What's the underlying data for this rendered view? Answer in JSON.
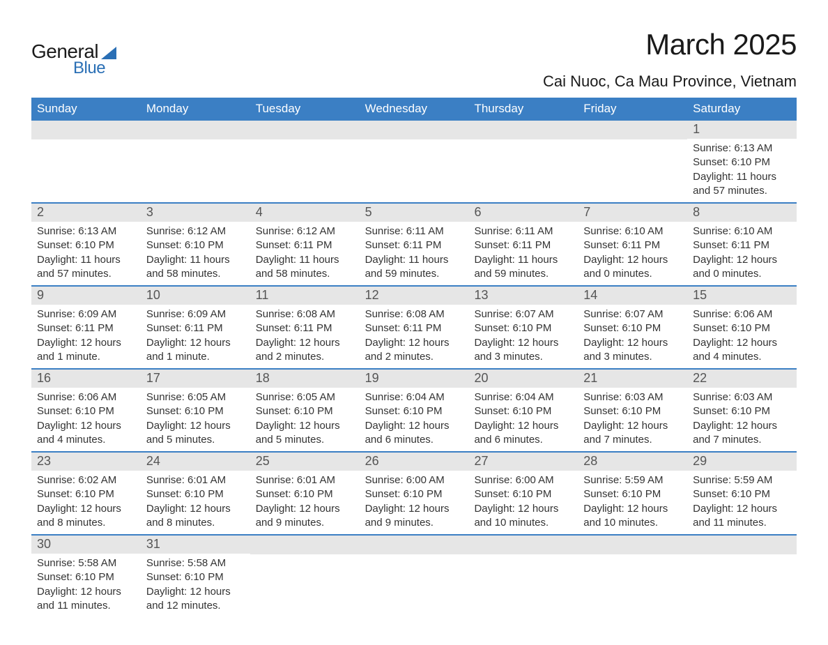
{
  "logo": {
    "text1": "General",
    "text2": "Blue",
    "accent_color": "#2a6fb5"
  },
  "header": {
    "month_title": "March 2025",
    "location": "Cai Nuoc, Ca Mau Province, Vietnam"
  },
  "colors": {
    "header_bg": "#3b7fc4",
    "header_text": "#ffffff",
    "daynum_bg": "#e6e6e6",
    "daynum_text": "#555555",
    "detail_text": "#333333",
    "row_divider": "#3b7fc4",
    "page_bg": "#ffffff"
  },
  "typography": {
    "month_title_fontsize": 42,
    "location_fontsize": 22,
    "weekday_fontsize": 17,
    "daynum_fontsize": 18,
    "detail_fontsize": 15
  },
  "weekdays": [
    "Sunday",
    "Monday",
    "Tuesday",
    "Wednesday",
    "Thursday",
    "Friday",
    "Saturday"
  ],
  "weeks": [
    [
      {
        "empty": true
      },
      {
        "empty": true
      },
      {
        "empty": true
      },
      {
        "empty": true
      },
      {
        "empty": true
      },
      {
        "empty": true
      },
      {
        "day": "1",
        "sunrise": "Sunrise: 6:13 AM",
        "sunset": "Sunset: 6:10 PM",
        "daylight": "Daylight: 11 hours and 57 minutes."
      }
    ],
    [
      {
        "day": "2",
        "sunrise": "Sunrise: 6:13 AM",
        "sunset": "Sunset: 6:10 PM",
        "daylight": "Daylight: 11 hours and 57 minutes."
      },
      {
        "day": "3",
        "sunrise": "Sunrise: 6:12 AM",
        "sunset": "Sunset: 6:10 PM",
        "daylight": "Daylight: 11 hours and 58 minutes."
      },
      {
        "day": "4",
        "sunrise": "Sunrise: 6:12 AM",
        "sunset": "Sunset: 6:11 PM",
        "daylight": "Daylight: 11 hours and 58 minutes."
      },
      {
        "day": "5",
        "sunrise": "Sunrise: 6:11 AM",
        "sunset": "Sunset: 6:11 PM",
        "daylight": "Daylight: 11 hours and 59 minutes."
      },
      {
        "day": "6",
        "sunrise": "Sunrise: 6:11 AM",
        "sunset": "Sunset: 6:11 PM",
        "daylight": "Daylight: 11 hours and 59 minutes."
      },
      {
        "day": "7",
        "sunrise": "Sunrise: 6:10 AM",
        "sunset": "Sunset: 6:11 PM",
        "daylight": "Daylight: 12 hours and 0 minutes."
      },
      {
        "day": "8",
        "sunrise": "Sunrise: 6:10 AM",
        "sunset": "Sunset: 6:11 PM",
        "daylight": "Daylight: 12 hours and 0 minutes."
      }
    ],
    [
      {
        "day": "9",
        "sunrise": "Sunrise: 6:09 AM",
        "sunset": "Sunset: 6:11 PM",
        "daylight": "Daylight: 12 hours and 1 minute."
      },
      {
        "day": "10",
        "sunrise": "Sunrise: 6:09 AM",
        "sunset": "Sunset: 6:11 PM",
        "daylight": "Daylight: 12 hours and 1 minute."
      },
      {
        "day": "11",
        "sunrise": "Sunrise: 6:08 AM",
        "sunset": "Sunset: 6:11 PM",
        "daylight": "Daylight: 12 hours and 2 minutes."
      },
      {
        "day": "12",
        "sunrise": "Sunrise: 6:08 AM",
        "sunset": "Sunset: 6:11 PM",
        "daylight": "Daylight: 12 hours and 2 minutes."
      },
      {
        "day": "13",
        "sunrise": "Sunrise: 6:07 AM",
        "sunset": "Sunset: 6:10 PM",
        "daylight": "Daylight: 12 hours and 3 minutes."
      },
      {
        "day": "14",
        "sunrise": "Sunrise: 6:07 AM",
        "sunset": "Sunset: 6:10 PM",
        "daylight": "Daylight: 12 hours and 3 minutes."
      },
      {
        "day": "15",
        "sunrise": "Sunrise: 6:06 AM",
        "sunset": "Sunset: 6:10 PM",
        "daylight": "Daylight: 12 hours and 4 minutes."
      }
    ],
    [
      {
        "day": "16",
        "sunrise": "Sunrise: 6:06 AM",
        "sunset": "Sunset: 6:10 PM",
        "daylight": "Daylight: 12 hours and 4 minutes."
      },
      {
        "day": "17",
        "sunrise": "Sunrise: 6:05 AM",
        "sunset": "Sunset: 6:10 PM",
        "daylight": "Daylight: 12 hours and 5 minutes."
      },
      {
        "day": "18",
        "sunrise": "Sunrise: 6:05 AM",
        "sunset": "Sunset: 6:10 PM",
        "daylight": "Daylight: 12 hours and 5 minutes."
      },
      {
        "day": "19",
        "sunrise": "Sunrise: 6:04 AM",
        "sunset": "Sunset: 6:10 PM",
        "daylight": "Daylight: 12 hours and 6 minutes."
      },
      {
        "day": "20",
        "sunrise": "Sunrise: 6:04 AM",
        "sunset": "Sunset: 6:10 PM",
        "daylight": "Daylight: 12 hours and 6 minutes."
      },
      {
        "day": "21",
        "sunrise": "Sunrise: 6:03 AM",
        "sunset": "Sunset: 6:10 PM",
        "daylight": "Daylight: 12 hours and 7 minutes."
      },
      {
        "day": "22",
        "sunrise": "Sunrise: 6:03 AM",
        "sunset": "Sunset: 6:10 PM",
        "daylight": "Daylight: 12 hours and 7 minutes."
      }
    ],
    [
      {
        "day": "23",
        "sunrise": "Sunrise: 6:02 AM",
        "sunset": "Sunset: 6:10 PM",
        "daylight": "Daylight: 12 hours and 8 minutes."
      },
      {
        "day": "24",
        "sunrise": "Sunrise: 6:01 AM",
        "sunset": "Sunset: 6:10 PM",
        "daylight": "Daylight: 12 hours and 8 minutes."
      },
      {
        "day": "25",
        "sunrise": "Sunrise: 6:01 AM",
        "sunset": "Sunset: 6:10 PM",
        "daylight": "Daylight: 12 hours and 9 minutes."
      },
      {
        "day": "26",
        "sunrise": "Sunrise: 6:00 AM",
        "sunset": "Sunset: 6:10 PM",
        "daylight": "Daylight: 12 hours and 9 minutes."
      },
      {
        "day": "27",
        "sunrise": "Sunrise: 6:00 AM",
        "sunset": "Sunset: 6:10 PM",
        "daylight": "Daylight: 12 hours and 10 minutes."
      },
      {
        "day": "28",
        "sunrise": "Sunrise: 5:59 AM",
        "sunset": "Sunset: 6:10 PM",
        "daylight": "Daylight: 12 hours and 10 minutes."
      },
      {
        "day": "29",
        "sunrise": "Sunrise: 5:59 AM",
        "sunset": "Sunset: 6:10 PM",
        "daylight": "Daylight: 12 hours and 11 minutes."
      }
    ],
    [
      {
        "day": "30",
        "sunrise": "Sunrise: 5:58 AM",
        "sunset": "Sunset: 6:10 PM",
        "daylight": "Daylight: 12 hours and 11 minutes."
      },
      {
        "day": "31",
        "sunrise": "Sunrise: 5:58 AM",
        "sunset": "Sunset: 6:10 PM",
        "daylight": "Daylight: 12 hours and 12 minutes."
      },
      {
        "empty": true
      },
      {
        "empty": true
      },
      {
        "empty": true
      },
      {
        "empty": true
      },
      {
        "empty": true
      }
    ]
  ]
}
